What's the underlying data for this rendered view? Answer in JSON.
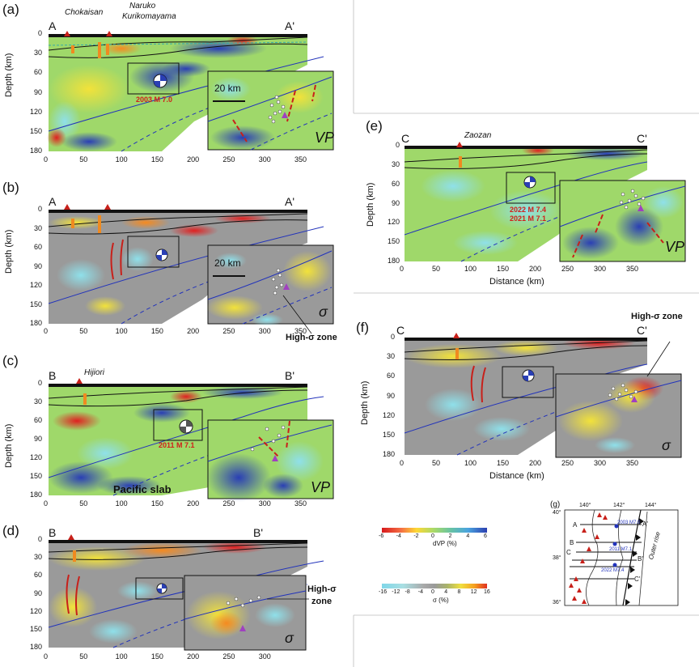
{
  "figure": {
    "panels": [
      {
        "id": "a",
        "label": "(a)",
        "left": "A",
        "right": "A'",
        "volcanoes": [
          "Chokaisan",
          "Naruko",
          "Kurikomayama"
        ],
        "quake": "2003 M 7.0",
        "param": "VP",
        "scale": "20 km"
      },
      {
        "id": "b",
        "label": "(b)",
        "left": "A",
        "right": "A'",
        "param": "σ",
        "scale": "20 km",
        "annotation": "High-σ  zone"
      },
      {
        "id": "c",
        "label": "(c)",
        "left": "B",
        "right": "B'",
        "volcanoes": [
          "Hijiori"
        ],
        "quake": "2011 M 7.1",
        "param": "VP",
        "slab": "Pacific slab"
      },
      {
        "id": "d",
        "label": "(d)",
        "left": "B",
        "right": "B'",
        "param": "σ",
        "annotation_line1": "High-σ",
        "annotation_line2": "zone"
      },
      {
        "id": "e",
        "label": "(e)",
        "left": "C",
        "right": "C'",
        "volcanoes": [
          "Zaozan"
        ],
        "quake1": "2022 M 7.4",
        "quake2": "2021 M 7.1",
        "param": "VP"
      },
      {
        "id": "f",
        "label": "(f)",
        "left": "C",
        "right": "C'",
        "param": "σ",
        "annotation": "High-σ zone"
      },
      {
        "id": "g",
        "label": "(g)"
      }
    ],
    "axes": {
      "depth_label": "Depth (km)",
      "distance_label": "Distance (km)",
      "depth_ticks": [
        "0",
        "30",
        "60",
        "90",
        "120",
        "150",
        "180"
      ],
      "distance_ticks": [
        "0",
        "50",
        "100",
        "150",
        "200",
        "250",
        "300",
        "350"
      ]
    },
    "colorbar_vp": {
      "ticks": [
        "-6",
        "-4",
        "-2",
        "0",
        "2",
        "4",
        "6"
      ],
      "label": "dVP (%)"
    },
    "colorbar_sigma": {
      "ticks": [
        "-16",
        "-12",
        "-8",
        "-4",
        "0",
        "4",
        "8",
        "12",
        "16"
      ],
      "label": "σ (%)"
    },
    "map": {
      "lon_ticks": [
        "140°",
        "142°",
        "144°"
      ],
      "lat_ticks": [
        "40°",
        "38°",
        "36°"
      ],
      "quakes": [
        "2003 M7.0",
        "2011 M7.1",
        "2022 M7.4"
      ],
      "profiles": [
        "A",
        "A'",
        "B",
        "B'",
        "C",
        "C'"
      ],
      "rise": "Outer rise"
    }
  }
}
